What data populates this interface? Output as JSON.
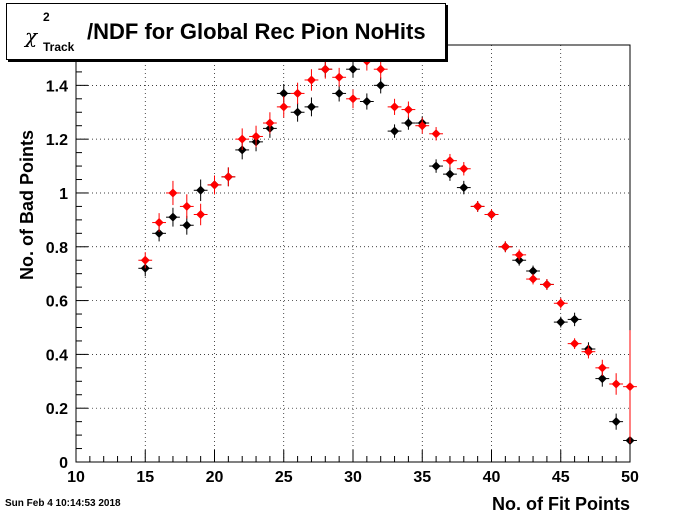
{
  "title": {
    "chi": "χ",
    "sup": "2",
    "sub": "Track",
    "main": "/NDF for Global Rec Pion NoHits"
  },
  "footer": "Sun Feb  4 10:14:53 2018",
  "chart_data": {
    "type": "scatter",
    "xlabel": "No. of Fit Points",
    "ylabel": "No. of Bad Points",
    "xlim": [
      10,
      50
    ],
    "ylim": [
      0,
      1.55
    ],
    "xticks": [
      10,
      15,
      20,
      25,
      30,
      35,
      40,
      45,
      50
    ],
    "yticks": [
      0,
      0.2,
      0.4,
      0.6,
      0.8,
      1,
      1.2,
      1.4
    ],
    "grid": true,
    "series": [
      {
        "color": "#000000",
        "points": [
          {
            "x": 15,
            "y": 0.72,
            "err": 0.03
          },
          {
            "x": 16,
            "y": 0.85,
            "err": 0.03
          },
          {
            "x": 17,
            "y": 0.91,
            "err": 0.035
          },
          {
            "x": 18,
            "y": 0.88,
            "err": 0.035
          },
          {
            "x": 19,
            "y": 1.01,
            "err": 0.04
          },
          {
            "x": 20,
            "y": 1.03,
            "err": 0.035
          },
          {
            "x": 21,
            "y": 1.06,
            "err": 0.035
          },
          {
            "x": 22,
            "y": 1.16,
            "err": 0.035
          },
          {
            "x": 23,
            "y": 1.19,
            "err": 0.035
          },
          {
            "x": 24,
            "y": 1.24,
            "err": 0.035
          },
          {
            "x": 25,
            "y": 1.37,
            "err": 0.035
          },
          {
            "x": 26,
            "y": 1.3,
            "err": 0.035
          },
          {
            "x": 27,
            "y": 1.32,
            "err": 0.035
          },
          {
            "x": 28,
            "y": 1.46,
            "err": 0.03
          },
          {
            "x": 29,
            "y": 1.37,
            "err": 0.03
          },
          {
            "x": 30,
            "y": 1.46,
            "err": 0.03
          },
          {
            "x": 31,
            "y": 1.34,
            "err": 0.03
          },
          {
            "x": 32,
            "y": 1.4,
            "err": 0.03
          },
          {
            "x": 33,
            "y": 1.23,
            "err": 0.025
          },
          {
            "x": 34,
            "y": 1.26,
            "err": 0.025
          },
          {
            "x": 35,
            "y": 1.26,
            "err": 0.025
          },
          {
            "x": 36,
            "y": 1.1,
            "err": 0.025
          },
          {
            "x": 37,
            "y": 1.07,
            "err": 0.025
          },
          {
            "x": 38,
            "y": 1.02,
            "err": 0.025
          },
          {
            "x": 39,
            "y": 0.95,
            "err": 0.02
          },
          {
            "x": 40,
            "y": 0.92,
            "err": 0.02
          },
          {
            "x": 41,
            "y": 0.8,
            "err": 0.02
          },
          {
            "x": 42,
            "y": 0.75,
            "err": 0.02
          },
          {
            "x": 43,
            "y": 0.71,
            "err": 0.02
          },
          {
            "x": 44,
            "y": 0.66,
            "err": 0.02
          },
          {
            "x": 45,
            "y": 0.52,
            "err": 0.02
          },
          {
            "x": 46,
            "y": 0.53,
            "err": 0.025
          },
          {
            "x": 47,
            "y": 0.42,
            "err": 0.025
          },
          {
            "x": 48,
            "y": 0.31,
            "err": 0.03
          },
          {
            "x": 49,
            "y": 0.15,
            "err": 0.03
          },
          {
            "x": 50,
            "y": 0.08,
            "err": 0.05
          }
        ]
      },
      {
        "color": "#ff0000",
        "points": [
          {
            "x": 15,
            "y": 0.75,
            "err": 0.03
          },
          {
            "x": 16,
            "y": 0.89,
            "err": 0.035
          },
          {
            "x": 17,
            "y": 1.0,
            "err": 0.045
          },
          {
            "x": 18,
            "y": 0.95,
            "err": 0.045
          },
          {
            "x": 19,
            "y": 0.92,
            "err": 0.04
          },
          {
            "x": 20,
            "y": 1.03,
            "err": 0.035
          },
          {
            "x": 21,
            "y": 1.06,
            "err": 0.035
          },
          {
            "x": 22,
            "y": 1.2,
            "err": 0.04
          },
          {
            "x": 23,
            "y": 1.21,
            "err": 0.04
          },
          {
            "x": 24,
            "y": 1.26,
            "err": 0.04
          },
          {
            "x": 25,
            "y": 1.32,
            "err": 0.04
          },
          {
            "x": 26,
            "y": 1.37,
            "err": 0.04
          },
          {
            "x": 27,
            "y": 1.42,
            "err": 0.04
          },
          {
            "x": 28,
            "y": 1.46,
            "err": 0.035
          },
          {
            "x": 29,
            "y": 1.43,
            "err": 0.035
          },
          {
            "x": 30,
            "y": 1.35,
            "err": 0.035
          },
          {
            "x": 31,
            "y": 1.49,
            "err": 0.035
          },
          {
            "x": 32,
            "y": 1.46,
            "err": 0.035
          },
          {
            "x": 33,
            "y": 1.32,
            "err": 0.03
          },
          {
            "x": 34,
            "y": 1.31,
            "err": 0.03
          },
          {
            "x": 35,
            "y": 1.25,
            "err": 0.03
          },
          {
            "x": 36,
            "y": 1.22,
            "err": 0.025
          },
          {
            "x": 37,
            "y": 1.12,
            "err": 0.025
          },
          {
            "x": 38,
            "y": 1.09,
            "err": 0.025
          },
          {
            "x": 39,
            "y": 0.95,
            "err": 0.02
          },
          {
            "x": 40,
            "y": 0.92,
            "err": 0.02
          },
          {
            "x": 41,
            "y": 0.8,
            "err": 0.02
          },
          {
            "x": 42,
            "y": 0.77,
            "err": 0.02
          },
          {
            "x": 43,
            "y": 0.68,
            "err": 0.02
          },
          {
            "x": 44,
            "y": 0.66,
            "err": 0.02
          },
          {
            "x": 45,
            "y": 0.59,
            "err": 0.02
          },
          {
            "x": 46,
            "y": 0.44,
            "err": 0.02
          },
          {
            "x": 47,
            "y": 0.41,
            "err": 0.025
          },
          {
            "x": 48,
            "y": 0.35,
            "err": 0.03
          },
          {
            "x": 49,
            "y": 0.29,
            "err": 0.04
          },
          {
            "x": 50,
            "y": 0.28,
            "err": 0.21
          }
        ]
      }
    ]
  }
}
